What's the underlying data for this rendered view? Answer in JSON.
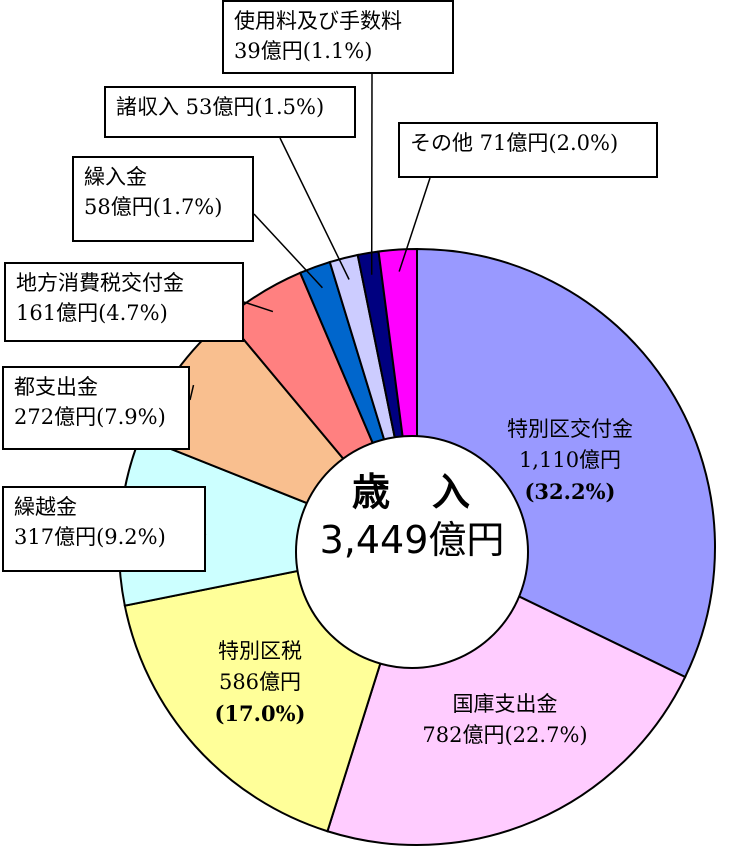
{
  "chart_data": {
    "type": "pie",
    "style": "donut",
    "center_label": {
      "title": "歳　入",
      "total": "3,449億円"
    },
    "unit": "億円",
    "slices": [
      {
        "name": "特別区交付金",
        "value": 1110,
        "value_text": "1,110億円",
        "percent": 32.2,
        "percent_text": "(32.2%)",
        "color": "#9999ff"
      },
      {
        "name": "国庫支出金",
        "value": 782,
        "value_text": "782億円",
        "percent": 22.7,
        "percent_text": "(22.7%)",
        "color": "#ffccff"
      },
      {
        "name": "特別区税",
        "value": 586,
        "value_text": "586億円",
        "percent": 17.0,
        "percent_text": "(17.0%)",
        "color": "#ffff99"
      },
      {
        "name": "繰越金",
        "value": 317,
        "value_text": "317億円",
        "percent": 9.2,
        "percent_text": "(9.2%)",
        "color": "#ccffff"
      },
      {
        "name": "都支出金",
        "value": 272,
        "value_text": "272億円",
        "percent": 7.9,
        "percent_text": "(7.9%)",
        "color": "#f9bf8f"
      },
      {
        "name": "地方消費税交付金",
        "value": 161,
        "value_text": "161億円",
        "percent": 4.7,
        "percent_text": "(4.7%)",
        "color": "#ff8080"
      },
      {
        "name": "繰入金",
        "value": 58,
        "value_text": "58億円",
        "percent": 1.7,
        "percent_text": "(1.7%)",
        "color": "#0066cc"
      },
      {
        "name": "諸収入",
        "value": 53,
        "value_text": "53億円",
        "percent": 1.5,
        "percent_text": "(1.5%)",
        "color": "#ccccff"
      },
      {
        "name": "使用料及び手数料",
        "value": 39,
        "value_text": "39億円",
        "percent": 1.1,
        "percent_text": "(1.1%)",
        "color": "#000080"
      },
      {
        "name": "その他",
        "value": 71,
        "value_text": "71億円",
        "percent": 2.0,
        "percent_text": "(2.0%)",
        "color": "#ff00ff"
      }
    ],
    "labels": {
      "tokubetsuku_kofukin": {
        "line1": "特別区交付金",
        "line2": "1,110億円",
        "line3": "(32.2%)"
      },
      "kokko": {
        "line1": "国庫支出金",
        "line2": "782億円(22.7%)"
      },
      "tokubetsukuzei": {
        "line1": "特別区税",
        "line2": "586億円",
        "line3": "(17.0%)"
      },
      "kurikoshi": {
        "line1": "繰越金",
        "line2": "317億円(9.2%)"
      },
      "toshishutsu": {
        "line1": "都支出金",
        "line2": "272億円(7.9%)"
      },
      "chihoshohizei": {
        "line1": "地方消費税交付金",
        "line2": "161億円(4.7%)"
      },
      "kurire": {
        "line1": "繰入金",
        "line2": "58億円(1.7%)"
      },
      "shoshunyu": {
        "line1": "諸収入 53億円(1.5%)"
      },
      "shiyoryo": {
        "line1": "使用料及び手数料",
        "line2": "39億円(1.1%)"
      },
      "sonota": {
        "line1": "その他 71億円(2.0%)"
      }
    }
  }
}
